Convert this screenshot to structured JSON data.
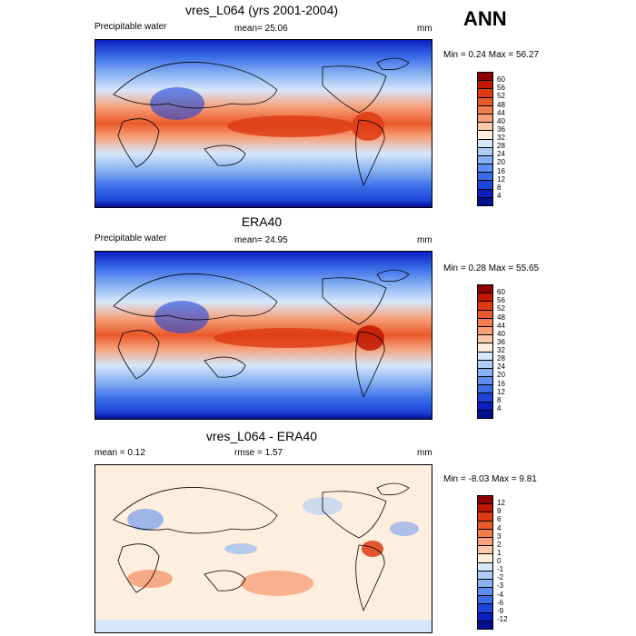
{
  "season": "ANN",
  "panels": [
    {
      "title": "vres_L064 (yrs 2001-2004)",
      "left_label": "Precipitable water",
      "center_label": "mean=  25.06",
      "units": "mm",
      "minmax": "Min =   0.24 Max =  56.27",
      "type": "absolute"
    },
    {
      "title": "ERA40",
      "left_label": "Precipitable water",
      "center_label": "mean=  24.95",
      "units": "mm",
      "minmax": "Min =   0.28 Max =  55.65",
      "type": "absolute"
    },
    {
      "title": "vres_L064 - ERA40",
      "left_label": "mean =   0.12",
      "center_label": "rmse =   1.57",
      "units": "mm",
      "minmax": "Min =  -8.03 Max =   9.81",
      "type": "difference"
    }
  ],
  "colorbars": {
    "absolute": {
      "levels": [
        "60",
        "56",
        "52",
        "48",
        "44",
        "40",
        "36",
        "32",
        "28",
        "24",
        "20",
        "16",
        "12",
        "8",
        "4"
      ],
      "colors": [
        "#8b0000",
        "#c01800",
        "#dd3a12",
        "#ea5a2a",
        "#f27c4a",
        "#f7a07a",
        "#fbc9a8",
        "#fdeede",
        "#d6e7fb",
        "#adcdf7",
        "#86b1f2",
        "#5e8ff0",
        "#3a6ce8",
        "#1d44d8",
        "#0a1ec2",
        "#000e90"
      ]
    },
    "difference": {
      "levels": [
        "12",
        "9",
        "6",
        "4",
        "3",
        "2",
        "1",
        "0",
        "-1",
        "-2",
        "-3",
        "-4",
        "-6",
        "-9",
        "-12"
      ],
      "colors": [
        "#8b0000",
        "#c01800",
        "#dd3a12",
        "#ea5a2a",
        "#f27c4a",
        "#f7a07a",
        "#fbc9a8",
        "#fdeede",
        "#d6e7fb",
        "#adcdf7",
        "#86b1f2",
        "#5e8ff0",
        "#3a6ce8",
        "#1d44d8",
        "#0a1ec2",
        "#000e90"
      ]
    }
  },
  "chart_data": [
    {
      "type": "heatmap",
      "title": "vres_L064 (yrs 2001-2004)",
      "variable": "Precipitable water",
      "units": "mm",
      "mean": 25.06,
      "min": 0.24,
      "max": 56.27,
      "colorbar_levels": [
        4,
        8,
        12,
        16,
        20,
        24,
        28,
        32,
        36,
        40,
        44,
        48,
        52,
        56,
        60
      ]
    },
    {
      "type": "heatmap",
      "title": "ERA40",
      "variable": "Precipitable water",
      "units": "mm",
      "mean": 24.95,
      "min": 0.28,
      "max": 55.65,
      "colorbar_levels": [
        4,
        8,
        12,
        16,
        20,
        24,
        28,
        32,
        36,
        40,
        44,
        48,
        52,
        56,
        60
      ]
    },
    {
      "type": "heatmap",
      "title": "vres_L064 - ERA40",
      "units": "mm",
      "mean": 0.12,
      "rmse": 1.57,
      "min": -8.03,
      "max": 9.81,
      "colorbar_levels": [
        -12,
        -9,
        -6,
        -4,
        -3,
        -2,
        -1,
        0,
        1,
        2,
        3,
        4,
        6,
        9,
        12
      ]
    }
  ]
}
